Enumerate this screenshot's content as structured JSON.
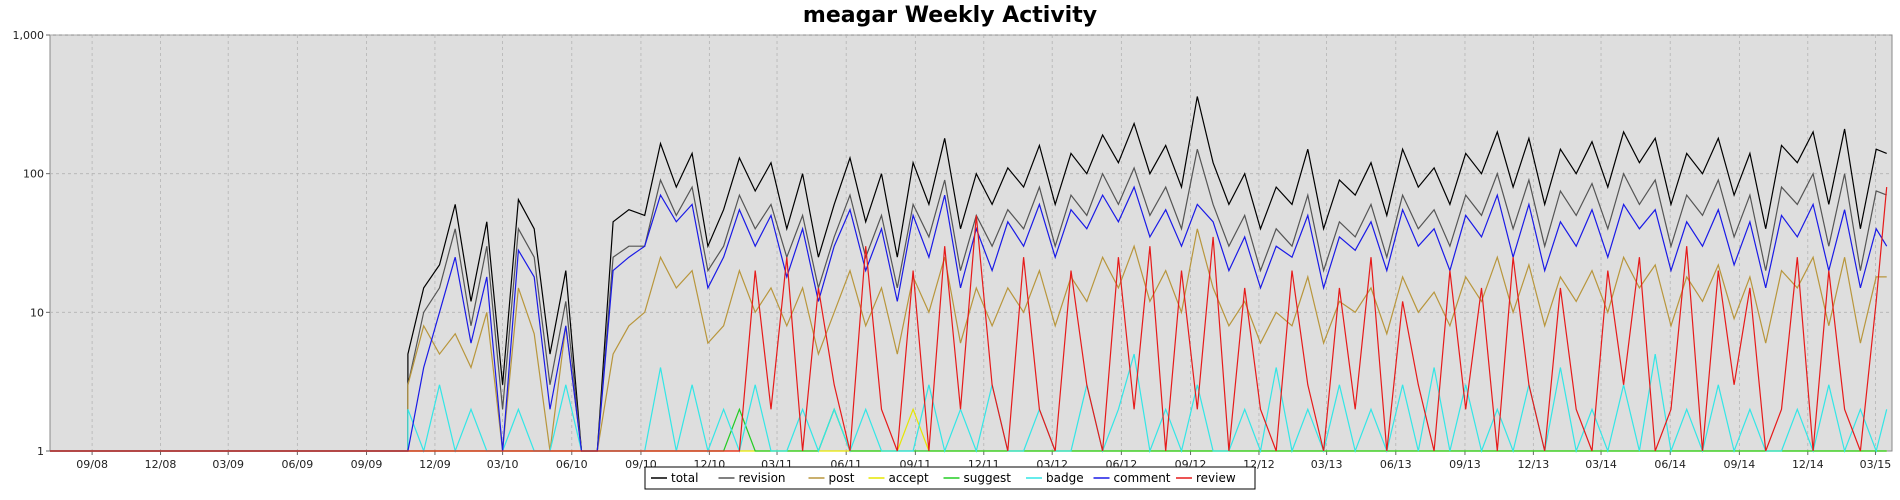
{
  "chart_data": {
    "type": "line",
    "title": "meagar Weekly Activity",
    "xlabel": "",
    "ylabel": "",
    "yscale": "log",
    "ylim": [
      1,
      1000
    ],
    "ytick_labels": [
      "1",
      "10",
      "100",
      "1,000"
    ],
    "ytick_values": [
      1,
      10,
      100,
      1000
    ],
    "xlim": [
      "2008-07-07",
      "2015-03-23"
    ],
    "xtick_labels": [
      "09/08",
      "12/08",
      "03/09",
      "06/09",
      "09/09",
      "12/09",
      "03/10",
      "06/10",
      "09/10",
      "12/10",
      "03/11",
      "06/11",
      "09/11",
      "12/11",
      "03/12",
      "06/12",
      "09/12",
      "12/12",
      "03/13",
      "06/13",
      "09/13",
      "12/13",
      "03/14",
      "06/14",
      "09/14",
      "12/14",
      "03/15"
    ],
    "xtick_dates": [
      "2008-09-01",
      "2008-12-01",
      "2009-03-01",
      "2009-06-01",
      "2009-09-01",
      "2009-12-01",
      "2010-03-01",
      "2010-06-01",
      "2010-09-01",
      "2010-12-01",
      "2011-03-01",
      "2011-06-01",
      "2011-09-01",
      "2011-12-01",
      "2012-03-01",
      "2012-06-01",
      "2012-09-01",
      "2012-12-01",
      "2013-03-01",
      "2013-06-01",
      "2013-09-01",
      "2013-12-01",
      "2014-03-01",
      "2014-06-01",
      "2014-09-01",
      "2014-12-01",
      "2015-03-01"
    ],
    "grid": true,
    "legend_position": "bottom",
    "x": [
      "2009-10-26",
      "2009-11-16",
      "2009-12-07",
      "2009-12-28",
      "2010-01-18",
      "2010-02-08",
      "2010-03-01",
      "2010-03-22",
      "2010-04-12",
      "2010-05-03",
      "2010-05-24",
      "2010-06-14",
      "2010-07-05",
      "2010-07-26",
      "2010-08-16",
      "2010-09-06",
      "2010-09-27",
      "2010-10-18",
      "2010-11-08",
      "2010-11-29",
      "2010-12-20",
      "2011-01-10",
      "2011-01-31",
      "2011-02-21",
      "2011-03-14",
      "2011-04-04",
      "2011-04-25",
      "2011-05-16",
      "2011-06-06",
      "2011-06-27",
      "2011-07-18",
      "2011-08-08",
      "2011-08-29",
      "2011-09-19",
      "2011-10-10",
      "2011-10-31",
      "2011-11-21",
      "2011-12-12",
      "2012-01-02",
      "2012-01-23",
      "2012-02-13",
      "2012-03-05",
      "2012-03-26",
      "2012-04-16",
      "2012-05-07",
      "2012-05-28",
      "2012-06-18",
      "2012-07-09",
      "2012-07-30",
      "2012-08-20",
      "2012-09-10",
      "2012-10-01",
      "2012-10-22",
      "2012-11-12",
      "2012-12-03",
      "2012-12-24",
      "2013-01-14",
      "2013-02-04",
      "2013-02-25",
      "2013-03-18",
      "2013-04-08",
      "2013-04-29",
      "2013-05-20",
      "2013-06-10",
      "2013-07-01",
      "2013-07-22",
      "2013-08-12",
      "2013-09-02",
      "2013-09-23",
      "2013-10-14",
      "2013-11-04",
      "2013-11-25",
      "2013-12-16",
      "2014-01-06",
      "2014-01-27",
      "2014-02-17",
      "2014-03-10",
      "2014-03-31",
      "2014-04-21",
      "2014-05-12",
      "2014-06-02",
      "2014-06-23",
      "2014-07-14",
      "2014-08-04",
      "2014-08-25",
      "2014-09-15",
      "2014-10-06",
      "2014-10-27",
      "2014-11-17",
      "2014-12-08",
      "2014-12-29",
      "2015-01-19",
      "2015-02-09",
      "2015-03-02",
      "2015-03-16"
    ],
    "series": [
      {
        "name": "total",
        "color": "#000000",
        "values": [
          5,
          15,
          22,
          60,
          12,
          45,
          3,
          65,
          40,
          5,
          20,
          1,
          1,
          45,
          55,
          50,
          165,
          80,
          140,
          30,
          55,
          130,
          75,
          120,
          40,
          100,
          25,
          60,
          130,
          45,
          100,
          25,
          120,
          60,
          180,
          40,
          100,
          60,
          110,
          80,
          160,
          60,
          140,
          100,
          190,
          120,
          230,
          100,
          160,
          80,
          360,
          120,
          60,
          100,
          40,
          80,
          60,
          150,
          40,
          90,
          70,
          120,
          50,
          150,
          80,
          110,
          60,
          140,
          100,
          200,
          80,
          180,
          60,
          150,
          100,
          170,
          80,
          200,
          120,
          180,
          60,
          140,
          100,
          180,
          70,
          140,
          40,
          160,
          120,
          200,
          60,
          210,
          40,
          150,
          140
        ]
      },
      {
        "name": "revision",
        "color": "#555555",
        "values": [
          3,
          10,
          15,
          40,
          8,
          30,
          2,
          40,
          25,
          3,
          12,
          1,
          1,
          25,
          30,
          30,
          90,
          50,
          80,
          20,
          30,
          70,
          40,
          60,
          25,
          50,
          15,
          35,
          70,
          25,
          50,
          15,
          60,
          35,
          90,
          20,
          50,
          30,
          55,
          40,
          80,
          30,
          70,
          50,
          100,
          60,
          110,
          50,
          80,
          40,
          150,
          60,
          30,
          50,
          20,
          40,
          30,
          70,
          20,
          45,
          35,
          60,
          25,
          70,
          40,
          55,
          30,
          70,
          50,
          100,
          40,
          90,
          30,
          75,
          50,
          85,
          40,
          100,
          60,
          90,
          30,
          70,
          50,
          90,
          35,
          70,
          20,
          80,
          60,
          100,
          30,
          100,
          20,
          75,
          70
        ]
      },
      {
        "name": "post",
        "color": "#b8963c",
        "values": [
          3,
          8,
          5,
          7,
          4,
          10,
          1,
          15,
          7,
          1,
          8,
          1,
          1,
          5,
          8,
          10,
          25,
          15,
          20,
          6,
          8,
          20,
          10,
          15,
          8,
          15,
          5,
          10,
          20,
          8,
          15,
          5,
          18,
          10,
          25,
          6,
          15,
          8,
          15,
          10,
          20,
          8,
          18,
          12,
          25,
          15,
          30,
          12,
          20,
          10,
          40,
          15,
          8,
          12,
          6,
          10,
          8,
          18,
          6,
          12,
          10,
          15,
          7,
          18,
          10,
          14,
          8,
          18,
          12,
          25,
          10,
          22,
          8,
          18,
          12,
          20,
          10,
          25,
          15,
          22,
          8,
          18,
          12,
          22,
          9,
          18,
          6,
          20,
          15,
          25,
          8,
          25,
          6,
          18,
          18
        ]
      },
      {
        "name": "accept",
        "color": "#e6e600",
        "values": [
          1,
          1,
          1,
          1,
          1,
          1,
          1,
          1,
          1,
          1,
          1,
          1,
          1,
          1,
          1,
          1,
          1,
          1,
          1,
          1,
          1,
          1,
          1,
          1,
          1,
          1,
          1,
          1,
          1,
          1,
          1,
          1,
          2,
          1,
          1,
          1,
          1,
          1,
          1,
          1,
          1,
          1,
          1,
          1,
          1,
          1,
          1,
          1,
          1,
          1,
          1,
          1,
          1,
          1,
          1,
          1,
          1,
          1,
          1,
          1,
          1,
          1,
          1,
          1,
          1,
          1,
          1,
          1,
          1,
          1,
          1,
          1,
          1,
          1,
          1,
          1,
          1,
          1,
          1,
          1,
          1,
          1,
          1,
          1,
          1,
          1,
          1,
          1,
          1,
          1,
          1,
          1,
          1,
          1,
          1
        ]
      },
      {
        "name": "suggest",
        "color": "#22cc22",
        "values": [
          1,
          1,
          1,
          1,
          1,
          1,
          1,
          1,
          1,
          1,
          1,
          1,
          1,
          1,
          1,
          1,
          1,
          1,
          1,
          1,
          1,
          2,
          1,
          1,
          1,
          1,
          1,
          2,
          1,
          1,
          1,
          1,
          1,
          1,
          1,
          1,
          1,
          1,
          1,
          1,
          1,
          1,
          1,
          1,
          1,
          1,
          1,
          1,
          1,
          1,
          1,
          1,
          1,
          1,
          1,
          1,
          1,
          1,
          1,
          1,
          1,
          1,
          1,
          1,
          1,
          1,
          1,
          1,
          1,
          1,
          1,
          1,
          1,
          1,
          1,
          1,
          1,
          1,
          1,
          1,
          1,
          1,
          1,
          1,
          1,
          1,
          1,
          1,
          1,
          1,
          1,
          1,
          1,
          1,
          1
        ]
      },
      {
        "name": "badge",
        "color": "#33e6e6",
        "values": [
          2,
          1,
          3,
          1,
          2,
          1,
          1,
          2,
          1,
          1,
          3,
          1,
          1,
          1,
          1,
          1,
          4,
          1,
          3,
          1,
          2,
          1,
          3,
          1,
          1,
          2,
          1,
          2,
          1,
          2,
          1,
          1,
          1,
          3,
          1,
          2,
          1,
          3,
          1,
          1,
          2,
          1,
          1,
          3,
          1,
          2,
          5,
          1,
          2,
          1,
          3,
          1,
          1,
          2,
          1,
          4,
          1,
          2,
          1,
          3,
          1,
          2,
          1,
          3,
          1,
          4,
          1,
          3,
          1,
          2,
          1,
          3,
          1,
          4,
          1,
          2,
          1,
          3,
          1,
          5,
          1,
          2,
          1,
          3,
          1,
          2,
          1,
          1,
          2,
          1,
          3,
          1,
          2,
          1,
          2
        ]
      },
      {
        "name": "comment",
        "color": "#1a1ae6",
        "values": [
          1,
          4,
          10,
          25,
          6,
          18,
          1,
          28,
          18,
          2,
          8,
          1,
          1,
          20,
          25,
          30,
          70,
          45,
          60,
          15,
          25,
          55,
          30,
          50,
          18,
          40,
          12,
          30,
          55,
          20,
          40,
          12,
          50,
          25,
          70,
          15,
          40,
          20,
          45,
          30,
          60,
          25,
          55,
          40,
          70,
          45,
          80,
          35,
          55,
          30,
          60,
          45,
          20,
          35,
          15,
          30,
          25,
          50,
          15,
          35,
          28,
          45,
          20,
          55,
          30,
          40,
          20,
          50,
          35,
          70,
          25,
          60,
          20,
          45,
          30,
          55,
          25,
          60,
          40,
          55,
          20,
          45,
          30,
          55,
          22,
          45,
          15,
          50,
          35,
          60,
          20,
          55,
          15,
          40,
          30
        ]
      },
      {
        "name": "review",
        "color": "#e61a1a",
        "values": [
          1,
          1,
          1,
          1,
          1,
          1,
          1,
          1,
          1,
          1,
          1,
          1,
          1,
          1,
          1,
          1,
          1,
          1,
          1,
          1,
          1,
          1,
          20,
          2,
          25,
          1,
          15,
          3,
          1,
          30,
          2,
          1,
          20,
          1,
          30,
          2,
          50,
          3,
          1,
          25,
          2,
          1,
          20,
          3,
          1,
          25,
          2,
          30,
          1,
          20,
          2,
          35,
          1,
          15,
          2,
          1,
          20,
          3,
          1,
          15,
          2,
          25,
          1,
          12,
          3,
          1,
          20,
          2,
          15,
          1,
          25,
          3,
          1,
          15,
          2,
          1,
          20,
          3,
          25,
          1,
          2,
          30,
          1,
          20,
          3,
          15,
          1,
          2,
          25,
          1,
          20,
          2,
          1,
          12,
          80
        ]
      }
    ]
  }
}
